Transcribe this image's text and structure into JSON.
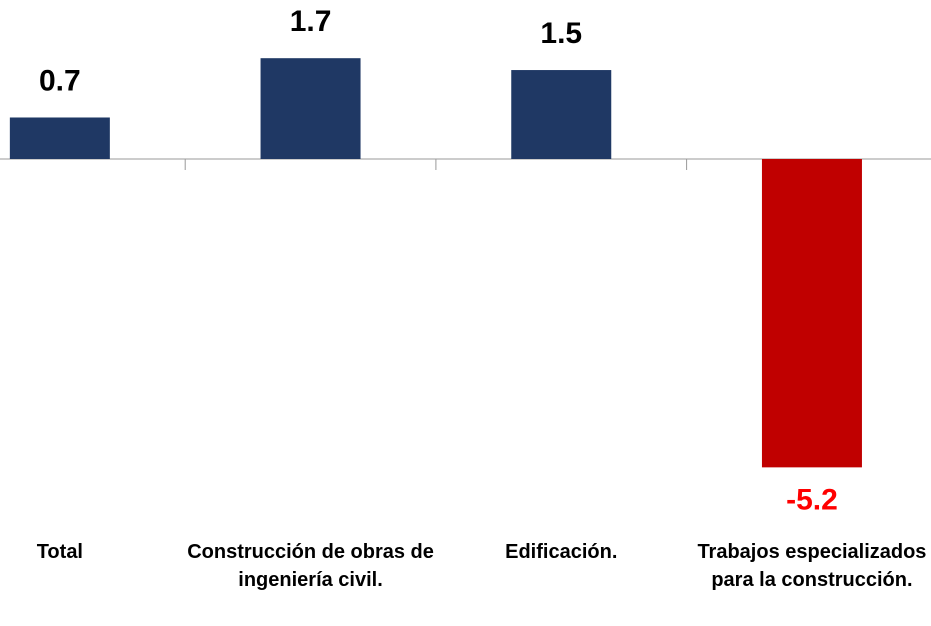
{
  "chart_data": {
    "type": "bar",
    "categories": [
      "Total",
      "Construcción de obras de ingeniería civil.",
      "Edificación.",
      "Trabajos especializados para la construcción."
    ],
    "values": [
      0.7,
      1.7,
      1.5,
      -5.2
    ],
    "colors": [
      "#1f3864",
      "#1f3864",
      "#1f3864",
      "#c00000"
    ],
    "label_colors": [
      "#000000",
      "#000000",
      "#000000",
      "#ff0000"
    ]
  }
}
